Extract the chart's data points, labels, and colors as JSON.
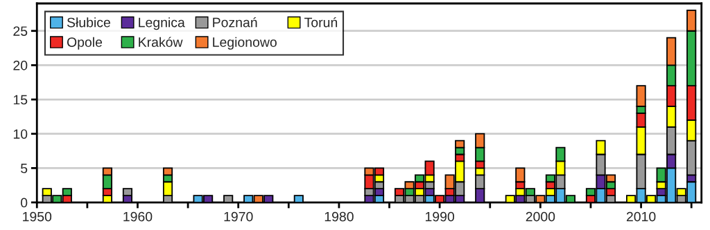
{
  "chart_data": {
    "type": "bar",
    "stacked": true,
    "x": [
      1951,
      1952,
      1953,
      1957,
      1959,
      1963,
      1966,
      1967,
      1969,
      1971,
      1972,
      1973,
      1976,
      1983,
      1984,
      1986,
      1987,
      1988,
      1989,
      1990,
      1991,
      1992,
      1994,
      1997,
      1998,
      1999,
      2000,
      2001,
      2002,
      2003,
      2005,
      2006,
      2007,
      2009,
      2010,
      2011,
      2012,
      2013,
      2014,
      2015
    ],
    "series": [
      {
        "name": "Słubice",
        "color": "#4fb3e8",
        "values": [
          null,
          null,
          null,
          null,
          null,
          null,
          1,
          null,
          null,
          1,
          null,
          null,
          1,
          null,
          1,
          null,
          null,
          null,
          1,
          null,
          null,
          null,
          null,
          null,
          null,
          null,
          null,
          1,
          2,
          null,
          null,
          2,
          null,
          null,
          2,
          null,
          1,
          5,
          null,
          3
        ]
      },
      {
        "name": "Legnica",
        "color": "#5b2d9a",
        "values": [
          null,
          null,
          null,
          null,
          1,
          null,
          null,
          1,
          null,
          null,
          null,
          1,
          null,
          1,
          1,
          null,
          null,
          null,
          1,
          null,
          1,
          1,
          2,
          null,
          1,
          null,
          null,
          null,
          null,
          null,
          null,
          2,
          null,
          null,
          null,
          null,
          1,
          2,
          null,
          1
        ]
      },
      {
        "name": "Poznań",
        "color": "#999999",
        "values": [
          1,
          null,
          null,
          null,
          1,
          1,
          null,
          null,
          1,
          null,
          null,
          null,
          null,
          1,
          1,
          1,
          1,
          1,
          1,
          null,
          null,
          2,
          2,
          null,
          null,
          1,
          null,
          null,
          2,
          null,
          null,
          3,
          1,
          null,
          5,
          null,
          null,
          4,
          1,
          5
        ]
      },
      {
        "name": "Toruń",
        "color": "#ffff00",
        "values": [
          1,
          null,
          null,
          1,
          null,
          2,
          null,
          null,
          null,
          null,
          null,
          null,
          null,
          null,
          1,
          null,
          null,
          1,
          1,
          null,
          null,
          3,
          1,
          1,
          1,
          null,
          null,
          1,
          2,
          null,
          null,
          2,
          null,
          1,
          4,
          1,
          1,
          3,
          1,
          3
        ]
      },
      {
        "name": "Opole",
        "color": "#ee2a24",
        "values": [
          null,
          null,
          1,
          1,
          null,
          null,
          null,
          null,
          null,
          null,
          null,
          null,
          null,
          2,
          1,
          1,
          null,
          1,
          2,
          1,
          1,
          1,
          1,
          null,
          1,
          null,
          null,
          1,
          null,
          null,
          1,
          null,
          1,
          null,
          2,
          null,
          null,
          3,
          null,
          5
        ]
      },
      {
        "name": "Kraków",
        "color": "#2eb04a",
        "values": [
          null,
          1,
          1,
          2,
          null,
          1,
          null,
          null,
          null,
          null,
          null,
          null,
          null,
          null,
          null,
          null,
          1,
          1,
          null,
          null,
          null,
          1,
          2,
          null,
          null,
          1,
          null,
          1,
          2,
          1,
          1,
          null,
          1,
          null,
          1,
          null,
          2,
          3,
          null,
          8
        ]
      },
      {
        "name": "Legionowo",
        "color": "#f47a30",
        "values": [
          null,
          null,
          null,
          1,
          null,
          1,
          null,
          null,
          null,
          null,
          1,
          null,
          null,
          1,
          null,
          null,
          1,
          null,
          null,
          null,
          2,
          1,
          2,
          null,
          2,
          null,
          1,
          null,
          null,
          null,
          null,
          null,
          1,
          null,
          3,
          null,
          null,
          4,
          null,
          3
        ]
      }
    ],
    "xlim": [
      1950,
      2016
    ],
    "xticks": [
      1950,
      {
        "value": 1955,
        "label": null
      },
      1960,
      {
        "value": 1965,
        "label": null
      },
      1970,
      {
        "value": 1975,
        "label": null
      },
      1980,
      {
        "value": 1985,
        "label": null
      },
      1990,
      {
        "value": 1995,
        "label": null
      },
      2000,
      {
        "value": 2005,
        "label": null
      },
      2010,
      {
        "value": 2015,
        "label": null
      }
    ],
    "ylim": [
      0,
      29
    ],
    "yticks": [
      0,
      5,
      10,
      15,
      20,
      25
    ],
    "grid": "y",
    "legend": "top left"
  }
}
